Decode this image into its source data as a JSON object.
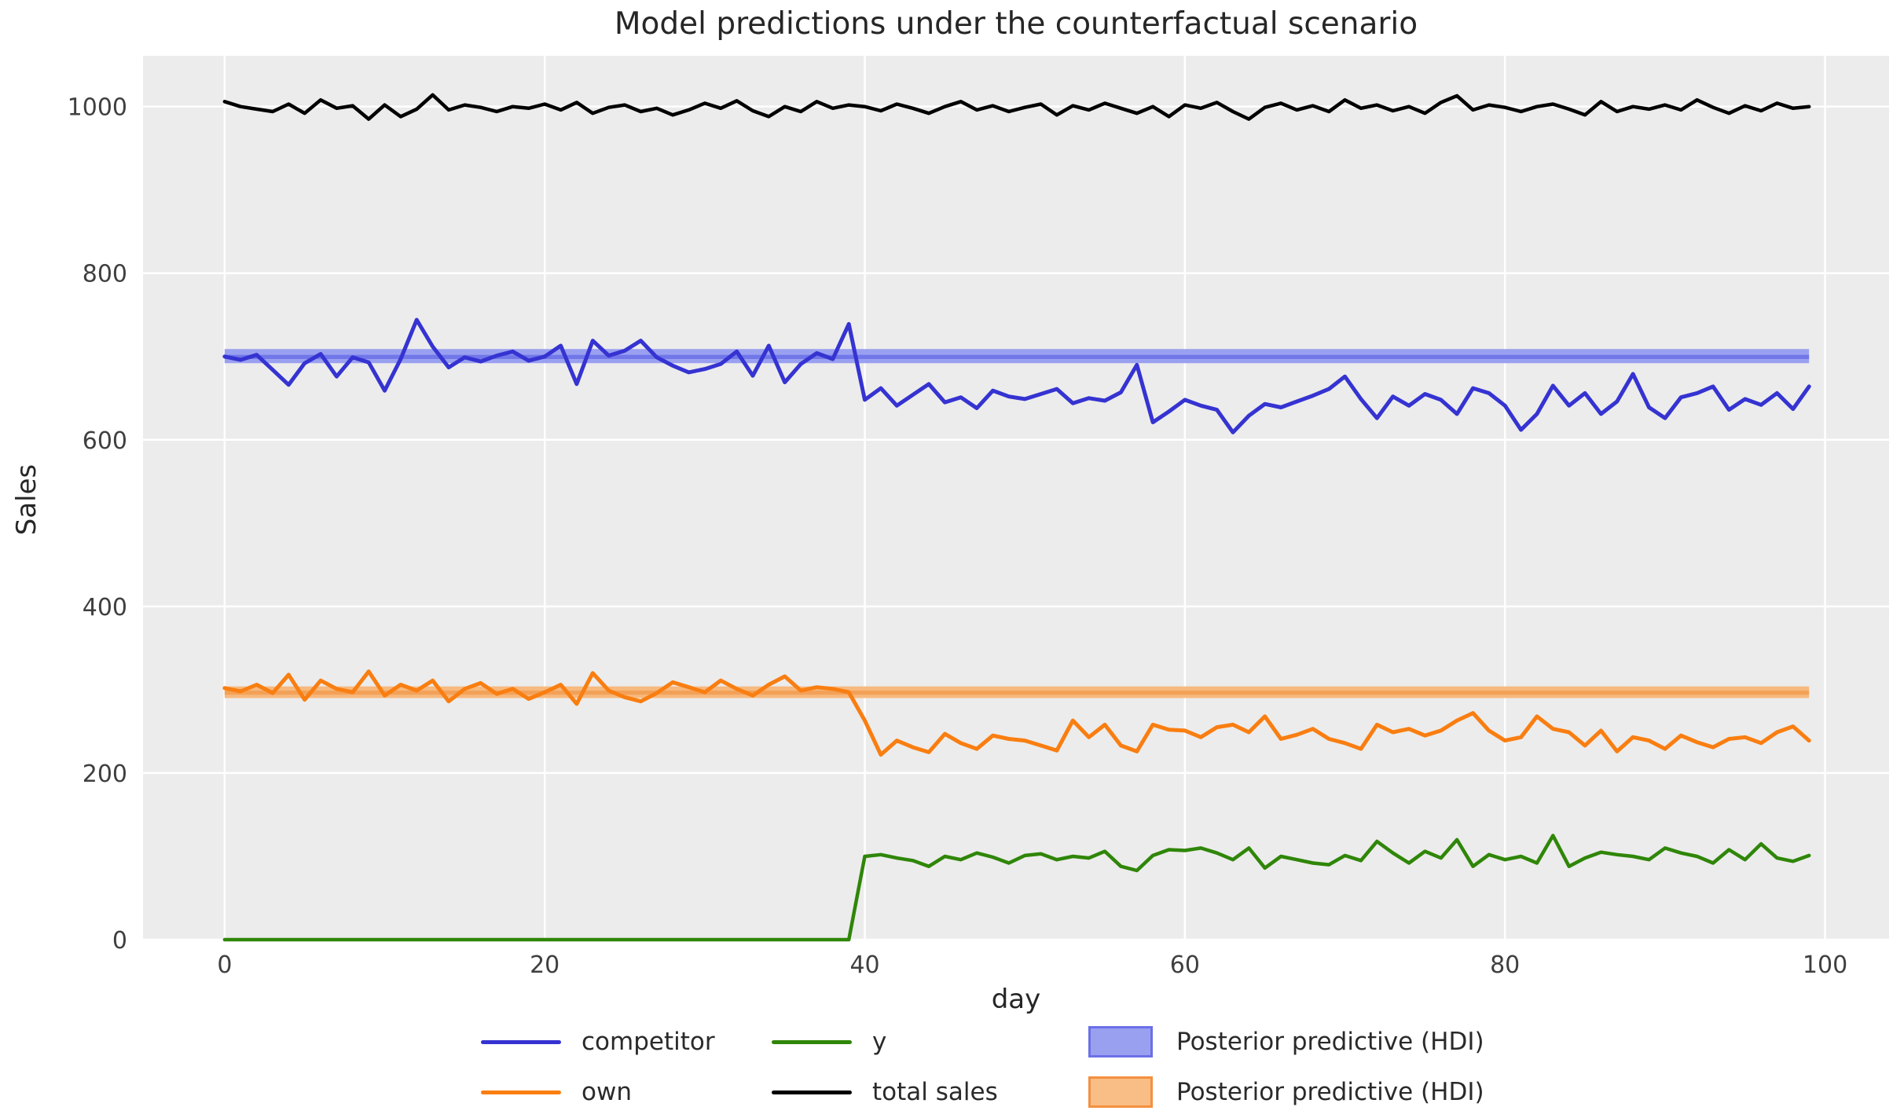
{
  "figure": {
    "title": "Model predictions under the counterfactual scenario",
    "background": "#ffffff",
    "axes_background": "#ececec",
    "grid_color": "#ffffff",
    "title_color": "#262626",
    "tick_color": "#3f3f3f"
  },
  "chart_data": {
    "type": "line",
    "title": "Model predictions under the counterfactual scenario",
    "xlabel": "day",
    "ylabel": "Sales",
    "xlim": [
      -5.1,
      104
    ],
    "ylim": [
      0,
      1061
    ],
    "xticks": [
      0,
      20,
      40,
      60,
      80,
      100
    ],
    "yticks": [
      0,
      200,
      400,
      600,
      800,
      1000
    ],
    "grid": true,
    "legend_position": "bottom",
    "x_start": 0,
    "x_step": 1,
    "n_points": 100,
    "series": [
      {
        "name": "competitor",
        "color": "#3533d1",
        "linewidth": 5,
        "values": [
          700,
          696,
          702,
          684,
          666,
          692,
          703,
          676,
          699,
          693,
          659,
          697,
          744,
          712,
          687,
          699,
          694,
          701,
          706,
          695,
          700,
          713,
          667,
          719,
          701,
          707,
          719,
          699,
          689,
          681,
          685,
          691,
          706,
          677,
          713,
          669,
          691,
          704,
          697,
          739,
          648,
          662,
          641,
          654,
          667,
          645,
          651,
          638,
          659,
          652,
          649,
          655,
          661,
          644,
          650,
          647,
          657,
          690,
          621,
          634,
          648,
          641,
          636,
          609,
          629,
          643,
          639,
          646,
          653,
          661,
          676,
          649,
          626,
          652,
          641,
          655,
          648,
          631,
          662,
          656,
          641,
          612,
          631,
          665,
          641,
          656,
          631,
          646,
          679,
          639,
          626,
          651,
          656,
          664,
          636,
          649,
          642,
          656,
          637,
          664
        ]
      },
      {
        "name": "own",
        "color": "#f97e11",
        "linewidth": 5,
        "values": [
          302,
          298,
          306,
          296,
          318,
          288,
          311,
          301,
          297,
          322,
          293,
          306,
          299,
          311,
          286,
          301,
          308,
          295,
          301,
          289,
          297,
          306,
          283,
          320,
          299,
          291,
          286,
          296,
          309,
          303,
          297,
          311,
          301,
          293,
          306,
          316,
          299,
          303,
          301,
          297,
          263,
          222,
          239,
          231,
          225,
          247,
          236,
          229,
          245,
          241,
          239,
          233,
          227,
          263,
          243,
          258,
          233,
          226,
          258,
          252,
          251,
          243,
          255,
          258,
          249,
          268,
          241,
          246,
          253,
          241,
          236,
          229,
          258,
          249,
          253,
          245,
          251,
          263,
          272,
          251,
          239,
          243,
          268,
          253,
          249,
          233,
          251,
          226,
          243,
          239,
          229,
          245,
          237,
          231,
          241,
          243,
          236,
          249,
          256,
          239
        ]
      },
      {
        "name": "y",
        "color": "#2f8608",
        "linewidth": 4.5,
        "values": [
          0,
          0,
          0,
          0,
          0,
          0,
          0,
          0,
          0,
          0,
          0,
          0,
          0,
          0,
          0,
          0,
          0,
          0,
          0,
          0,
          0,
          0,
          0,
          0,
          0,
          0,
          0,
          0,
          0,
          0,
          0,
          0,
          0,
          0,
          0,
          0,
          0,
          0,
          0,
          0,
          100,
          102,
          98,
          95,
          88,
          100,
          96,
          104,
          99,
          92,
          101,
          103,
          96,
          100,
          98,
          106,
          88,
          83,
          101,
          108,
          107,
          110,
          104,
          96,
          110,
          86,
          100,
          96,
          92,
          90,
          101,
          95,
          118,
          104,
          92,
          106,
          98,
          120,
          88,
          102,
          96,
          100,
          92,
          125,
          88,
          98,
          105,
          102,
          100,
          96,
          110,
          104,
          100,
          92,
          108,
          96,
          115,
          98,
          94,
          101
        ]
      },
      {
        "name": "total sales",
        "color": "#000000",
        "linewidth": 4.5,
        "values": [
          1006,
          1000,
          997,
          994,
          1003,
          992,
          1008,
          998,
          1001,
          985,
          1002,
          988,
          997,
          1014,
          996,
          1002,
          999,
          994,
          1000,
          998,
          1003,
          996,
          1005,
          992,
          999,
          1002,
          994,
          998,
          990,
          996,
          1004,
          998,
          1007,
          995,
          988,
          1000,
          994,
          1006,
          998,
          1002,
          1000,
          995,
          1003,
          998,
          992,
          1000,
          1006,
          996,
          1001,
          994,
          999,
          1003,
          990,
          1001,
          996,
          1004,
          998,
          992,
          1000,
          988,
          1002,
          998,
          1005,
          994,
          985,
          999,
          1004,
          996,
          1001,
          994,
          1008,
          998,
          1002,
          995,
          1000,
          992,
          1005,
          1013,
          996,
          1002,
          999,
          994,
          1000,
          1003,
          997,
          990,
          1006,
          994,
          1000,
          997,
          1002,
          996,
          1008,
          999,
          992,
          1001,
          995,
          1004,
          998,
          1000
        ]
      }
    ],
    "hdi_bands": [
      {
        "label": "Posterior predictive (HDI)",
        "series": "competitor",
        "x_range": [
          0,
          99
        ],
        "lo": 692,
        "hi": 709,
        "mean_band": [
          697,
          702
        ],
        "fill": "#9aa0f0",
        "mean_fill": "#7176e9"
      },
      {
        "label": "Posterior predictive (HDI)",
        "series": "own",
        "x_range": [
          0,
          99
        ],
        "lo": 290,
        "hi": 304,
        "mean_band": [
          294,
          299
        ],
        "fill": "#f7b97e",
        "mean_fill": "#f3a159"
      }
    ],
    "legend": [
      {
        "swatch": "line",
        "color": "#3533d1",
        "label": "competitor"
      },
      {
        "swatch": "line",
        "color": "#f97e11",
        "label": "own"
      },
      {
        "swatch": "line",
        "color": "#2f8608",
        "label": "y"
      },
      {
        "swatch": "line",
        "color": "#000000",
        "label": "total sales"
      },
      {
        "swatch": "patch",
        "fill": "#9aa0f0",
        "edge": "#6a70e8",
        "label": "Posterior predictive (HDI)"
      },
      {
        "swatch": "patch",
        "fill": "#f9be85",
        "edge": "#f49040",
        "label": "Posterior predictive (HDI)"
      }
    ]
  }
}
